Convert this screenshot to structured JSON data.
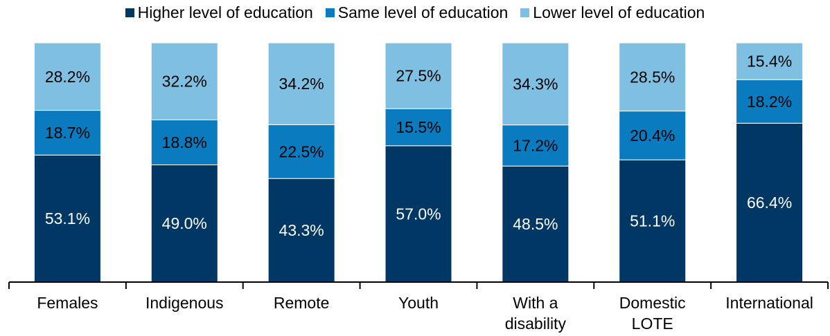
{
  "chart_data": {
    "type": "bar",
    "stacked": true,
    "categories": [
      [
        "Females"
      ],
      [
        "Indigenous"
      ],
      [
        "Remote"
      ],
      [
        "Youth"
      ],
      [
        "With a",
        "disability"
      ],
      [
        "Domestic",
        "LOTE"
      ],
      [
        "International"
      ]
    ],
    "series": [
      {
        "name": "Higher level of education",
        "color": "#003764",
        "labels": [
          "53.1%",
          "49.0%",
          "43.3%",
          "57.0%",
          "48.5%",
          "51.1%",
          "66.4%"
        ],
        "values": [
          53.1,
          49.0,
          43.3,
          57.0,
          48.5,
          51.1,
          66.4
        ]
      },
      {
        "name": "Same level of education",
        "color": "#0a7bbf",
        "labels": [
          "18.7%",
          "18.8%",
          "22.5%",
          "15.5%",
          "17.2%",
          "20.4%",
          "18.2%"
        ],
        "values": [
          18.7,
          18.8,
          22.5,
          15.5,
          17.2,
          20.4,
          18.2
        ]
      },
      {
        "name": "Lower level of education",
        "color": "#7fbfe2",
        "labels": [
          "28.2%",
          "32.2%",
          "34.2%",
          "27.5%",
          "34.3%",
          "28.5%",
          "15.4%"
        ],
        "values": [
          28.2,
          32.2,
          34.2,
          27.5,
          34.3,
          28.5,
          15.4
        ]
      }
    ],
    "ylim": [
      0,
      100
    ],
    "grid": false,
    "legend_position": "top"
  }
}
